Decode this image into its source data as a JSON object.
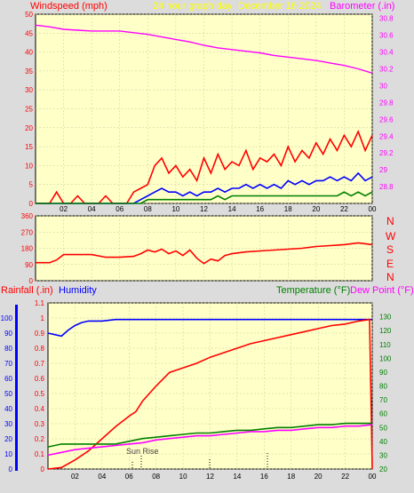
{
  "header": {
    "windspeed_label": "Windspeed (mph)",
    "graph_title": "24 hour graph day",
    "date": "December 16 2024",
    "barometer_label": "Barometer (.in)"
  },
  "colors": {
    "background": "#dcdcdc",
    "plot_bg": "#ffffc8",
    "wind": "#ff0000",
    "gust": "#0000ff",
    "avg": "#008000",
    "barometer": "#ff00ff",
    "humidity": "#0000ff",
    "rain": "#ff0000",
    "temperature": "#008000",
    "dewpoint": "#ff00ff",
    "title_yellow": "#ffff00",
    "grid": "#c8c8a0"
  },
  "x_ticks": [
    "02",
    "04",
    "06",
    "08",
    "10",
    "12",
    "14",
    "16",
    "18",
    "20",
    "22",
    "00"
  ],
  "compass_labels": [
    "N",
    "W",
    "S",
    "E",
    "N"
  ],
  "bottom": {
    "rainfall_label": "Rainfall (.in)",
    "humidity_label": "Humidity",
    "temperature_label": "Temperature (°F)",
    "dewpoint_label": "Dew Point (°F)",
    "sunrise_label": "Sun Rise"
  },
  "chart_data": [
    {
      "type": "line",
      "title": "24 hour graph day",
      "xlabel": "",
      "x_range_hours": [
        0,
        24
      ],
      "y_left_label": "Windspeed (mph)",
      "ylim_left": [
        0,
        50
      ],
      "y_left_ticks": [
        0,
        5,
        10,
        15,
        20,
        25,
        30,
        35,
        40,
        45,
        50
      ],
      "y_right_label": "Barometer (.in)",
      "ylim_right": [
        28.6,
        30.85
      ],
      "y_right_ticks": [
        28.8,
        29,
        29.2,
        29.4,
        29.6,
        29.8,
        30,
        30.2,
        30.4,
        30.6,
        30.8
      ],
      "series": [
        {
          "name": "Windspeed (mph)",
          "role": "wind",
          "x": [
            0,
            1,
            1.5,
            2,
            2.5,
            3,
            3.5,
            4,
            4.5,
            5,
            5.5,
            6,
            6.5,
            7,
            7.5,
            8,
            8.5,
            9,
            9.5,
            10,
            10.5,
            11,
            11.5,
            12,
            12.5,
            13,
            13.5,
            14,
            14.5,
            15,
            15.5,
            16,
            16.5,
            17,
            17.5,
            18,
            18.5,
            19,
            19.5,
            20,
            20.5,
            21,
            21.5,
            22,
            22.5,
            23,
            23.5,
            24
          ],
          "y": [
            0,
            0,
            3,
            0,
            0,
            2,
            0,
            0,
            0,
            2,
            0,
            0,
            0,
            3,
            4,
            5,
            10,
            12,
            8,
            10,
            7,
            9,
            6,
            12,
            8,
            13,
            9,
            11,
            10,
            14,
            9,
            12,
            11,
            13,
            10,
            15,
            11,
            14,
            12,
            16,
            13,
            17,
            14,
            18,
            15,
            19,
            14,
            18
          ]
        },
        {
          "name": "Gust",
          "role": "gust",
          "x": [
            0,
            6.5,
            7,
            7.5,
            8,
            8.5,
            9,
            9.5,
            10,
            10.5,
            11,
            11.5,
            12,
            12.5,
            13,
            13.5,
            14,
            14.5,
            15,
            15.5,
            16,
            16.5,
            17,
            17.5,
            18,
            18.5,
            19,
            19.5,
            20,
            20.5,
            21,
            21.5,
            22,
            22.5,
            23,
            23.5,
            24
          ],
          "y": [
            0,
            0,
            0,
            1,
            2,
            3,
            4,
            3,
            3,
            2,
            3,
            2,
            3,
            3,
            4,
            3,
            4,
            4,
            5,
            4,
            5,
            4,
            5,
            4,
            6,
            5,
            6,
            5,
            6,
            6,
            7,
            6,
            7,
            6,
            8,
            6,
            7
          ]
        },
        {
          "name": "Avg",
          "role": "avg",
          "x": [
            0,
            7,
            7.5,
            8,
            8.5,
            9,
            9.5,
            10,
            10.5,
            11,
            11.5,
            12,
            12.5,
            13,
            13.5,
            14,
            14.5,
            15,
            15.5,
            16,
            16.5,
            17,
            17.5,
            18,
            18.5,
            19,
            19.5,
            20,
            20.5,
            21,
            21.5,
            22,
            22.5,
            23,
            23.5,
            24
          ],
          "y": [
            0,
            0,
            0,
            1,
            1,
            1,
            1,
            1,
            1,
            1,
            1,
            1,
            1,
            2,
            1,
            2,
            2,
            2,
            2,
            2,
            2,
            2,
            2,
            2,
            2,
            2,
            2,
            2,
            2,
            2,
            2,
            3,
            2,
            3,
            2,
            3
          ]
        },
        {
          "name": "Barometer (.in)",
          "role": "barometer",
          "axis": "right",
          "x": [
            0,
            1,
            2,
            3,
            4,
            5,
            6,
            7,
            8,
            9,
            10,
            11,
            12,
            13,
            14,
            15,
            16,
            17,
            18,
            19,
            20,
            21,
            22,
            23,
            24
          ],
          "y": [
            30.72,
            30.7,
            30.67,
            30.66,
            30.65,
            30.65,
            30.65,
            30.63,
            30.61,
            30.58,
            30.55,
            30.52,
            30.48,
            30.45,
            30.43,
            30.41,
            30.39,
            30.36,
            30.34,
            30.32,
            30.3,
            30.27,
            30.24,
            30.2,
            30.15
          ]
        }
      ]
    },
    {
      "type": "line",
      "xlabel": "",
      "y_label": "wind direction",
      "ylim": [
        0,
        360
      ],
      "y_ticks": [
        0,
        90,
        180,
        270,
        360
      ],
      "series": [
        {
          "name": "Wind direction",
          "role": "direction",
          "x": [
            0,
            1,
            1.5,
            2,
            3,
            4,
            5,
            6,
            7,
            7.5,
            8,
            8.5,
            9,
            9.5,
            10,
            10.5,
            11,
            11.5,
            12,
            12.5,
            13,
            13.5,
            14,
            15,
            16,
            17,
            18,
            19,
            20,
            21,
            22,
            23,
            24
          ],
          "y": [
            100,
            100,
            115,
            145,
            145,
            145,
            130,
            130,
            135,
            150,
            170,
            160,
            175,
            150,
            165,
            140,
            170,
            125,
            95,
            120,
            110,
            140,
            150,
            160,
            165,
            170,
            175,
            180,
            190,
            195,
            200,
            210,
            200
          ]
        }
      ]
    },
    {
      "type": "line",
      "xlabel": "",
      "y_left_label": "Rainfall (.in)",
      "ylim_left": [
        0,
        1.1
      ],
      "y_left_ticks": [
        0,
        0.1,
        0.2,
        0.3,
        0.4,
        0.5,
        0.6,
        0.7,
        0.8,
        0.9,
        1,
        1.1
      ],
      "humidity_ticks": [
        0,
        10,
        20,
        30,
        40,
        50,
        60,
        70,
        80,
        90,
        100
      ],
      "y_right_label": "Temperature (°F)",
      "ylim_right": [
        20,
        140
      ],
      "y_right_ticks": [
        20,
        30,
        40,
        50,
        60,
        70,
        80,
        90,
        100,
        110,
        120,
        130
      ],
      "series": [
        {
          "name": "Humidity",
          "role": "humidity",
          "axis": "humidity",
          "x": [
            0,
            0.5,
            1,
            1.5,
            2,
            2.5,
            3,
            4,
            5,
            6,
            7,
            8,
            10,
            12,
            14,
            16,
            18,
            20,
            22,
            24
          ],
          "y": [
            90,
            89,
            88,
            92,
            95,
            97,
            98,
            98,
            99,
            99,
            99,
            99,
            99,
            99,
            99,
            99,
            99,
            99,
            99,
            99
          ]
        },
        {
          "name": "Rainfall (.in)",
          "role": "rain",
          "axis": "left",
          "x": [
            0,
            1,
            2,
            3,
            4,
            5,
            6,
            6.5,
            7,
            8,
            9,
            10,
            11,
            12,
            13,
            14,
            15,
            16,
            17,
            18,
            19,
            20,
            21,
            22,
            23,
            23.8,
            24
          ],
          "y": [
            0,
            0.01,
            0.06,
            0.12,
            0.2,
            0.28,
            0.35,
            0.38,
            0.45,
            0.55,
            0.64,
            0.67,
            0.7,
            0.74,
            0.77,
            0.8,
            0.83,
            0.85,
            0.87,
            0.89,
            0.91,
            0.93,
            0.95,
            0.96,
            0.98,
            0.99,
            0
          ]
        },
        {
          "name": "Temperature (°F)",
          "role": "temperature",
          "axis": "right",
          "x": [
            0,
            1,
            2,
            3,
            4,
            5,
            6,
            7,
            8,
            9,
            10,
            11,
            12,
            13,
            14,
            15,
            16,
            17,
            18,
            19,
            20,
            21,
            22,
            23,
            24
          ],
          "y": [
            36,
            38,
            38,
            38,
            38,
            38,
            40,
            42,
            43,
            44,
            45,
            46,
            46,
            47,
            48,
            48,
            49,
            50,
            50,
            51,
            52,
            52,
            53,
            53,
            53
          ]
        },
        {
          "name": "Dew Point (°F)",
          "role": "dewpoint",
          "axis": "right",
          "x": [
            0,
            1,
            2,
            3,
            4,
            5,
            6,
            7,
            8,
            9,
            10,
            11,
            12,
            13,
            14,
            15,
            16,
            17,
            18,
            19,
            20,
            21,
            22,
            23,
            24
          ],
          "y": [
            30,
            32,
            34,
            35,
            36,
            37,
            38,
            39,
            41,
            42,
            43,
            44,
            44,
            45,
            46,
            47,
            47,
            48,
            48,
            49,
            50,
            50,
            51,
            51,
            52
          ]
        }
      ]
    }
  ]
}
